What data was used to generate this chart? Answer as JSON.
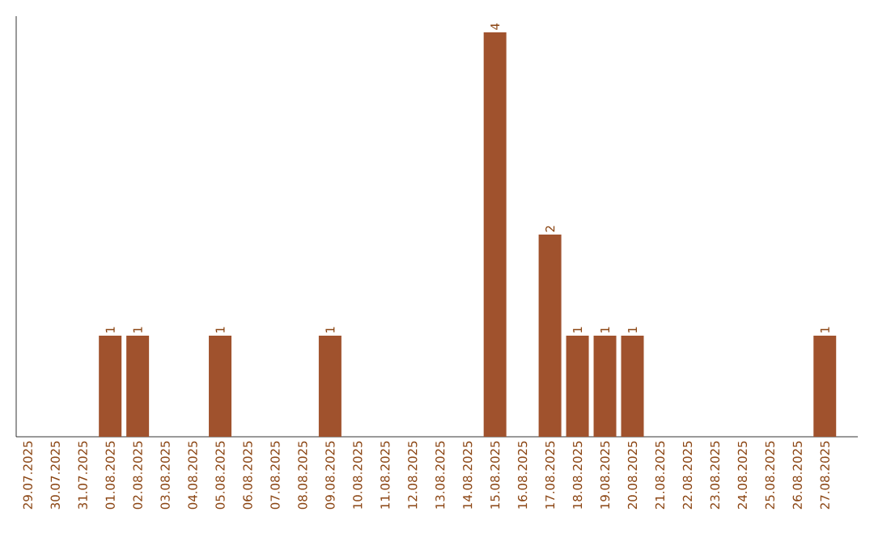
{
  "chart_data": {
    "type": "bar",
    "categories": [
      "29.07.2025",
      "30.07.2025",
      "31.07.2025",
      "01.08.2025",
      "02.08.2025",
      "03.08.2025",
      "04.08.2025",
      "05.08.2025",
      "06.08.2025",
      "07.08.2025",
      "08.08.2025",
      "09.08.2025",
      "10.08.2025",
      "11.08.2025",
      "12.08.2025",
      "13.08.2025",
      "14.08.2025",
      "15.08.2025",
      "16.08.2025",
      "17.08.2025",
      "18.08.2025",
      "19.08.2025",
      "20.08.2025",
      "21.08.2025",
      "22.08.2025",
      "23.08.2025",
      "24.08.2025",
      "25.08.2025",
      "26.08.2025",
      "27.08.2025"
    ],
    "values": [
      0,
      0,
      0,
      1,
      1,
      0,
      0,
      1,
      0,
      0,
      0,
      1,
      0,
      0,
      0,
      0,
      0,
      4,
      0,
      2,
      1,
      1,
      1,
      0,
      0,
      0,
      0,
      0,
      0,
      1
    ],
    "value_labels": [
      null,
      null,
      null,
      "1",
      "1",
      null,
      null,
      "1",
      null,
      null,
      null,
      "1",
      null,
      null,
      null,
      null,
      null,
      "4",
      null,
      "2",
      "1",
      "1",
      "1",
      null,
      null,
      null,
      null,
      null,
      null,
      "1"
    ],
    "color": "#a0522d",
    "grid": false
  }
}
